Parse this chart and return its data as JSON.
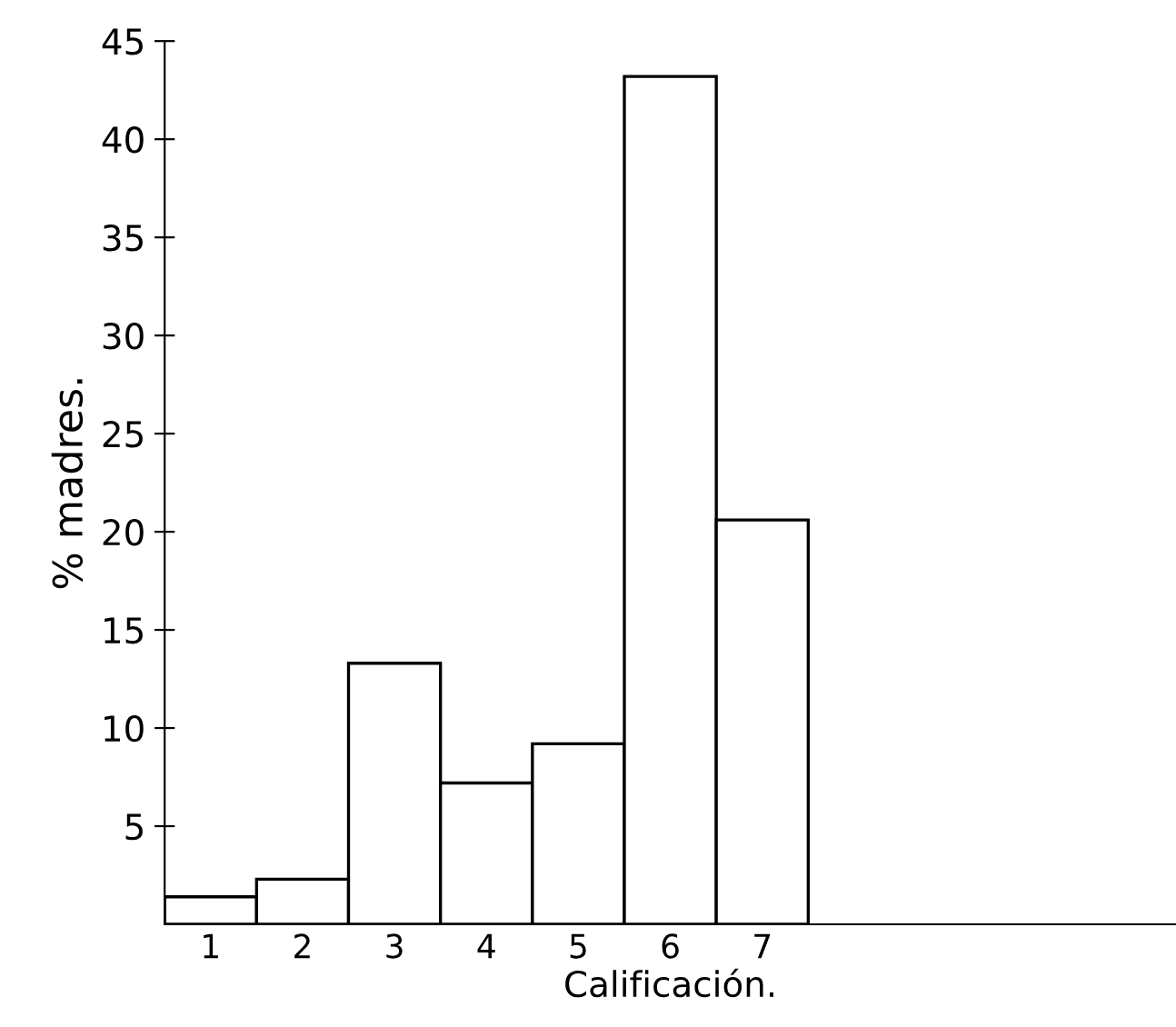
{
  "chart_data": {
    "type": "bar",
    "categories": [
      "1",
      "2",
      "3",
      "4",
      "5",
      "6",
      "7"
    ],
    "values": [
      1.4,
      2.3,
      13.3,
      7.2,
      9.2,
      43.2,
      20.6
    ],
    "color": "#ffffff",
    "xlabel": "Calificación.",
    "ylabel": "% madres.",
    "ylim": [
      0,
      45
    ],
    "yticks": [
      5,
      10,
      15,
      20,
      25,
      30,
      35,
      40,
      45
    ],
    "grid": false
  }
}
